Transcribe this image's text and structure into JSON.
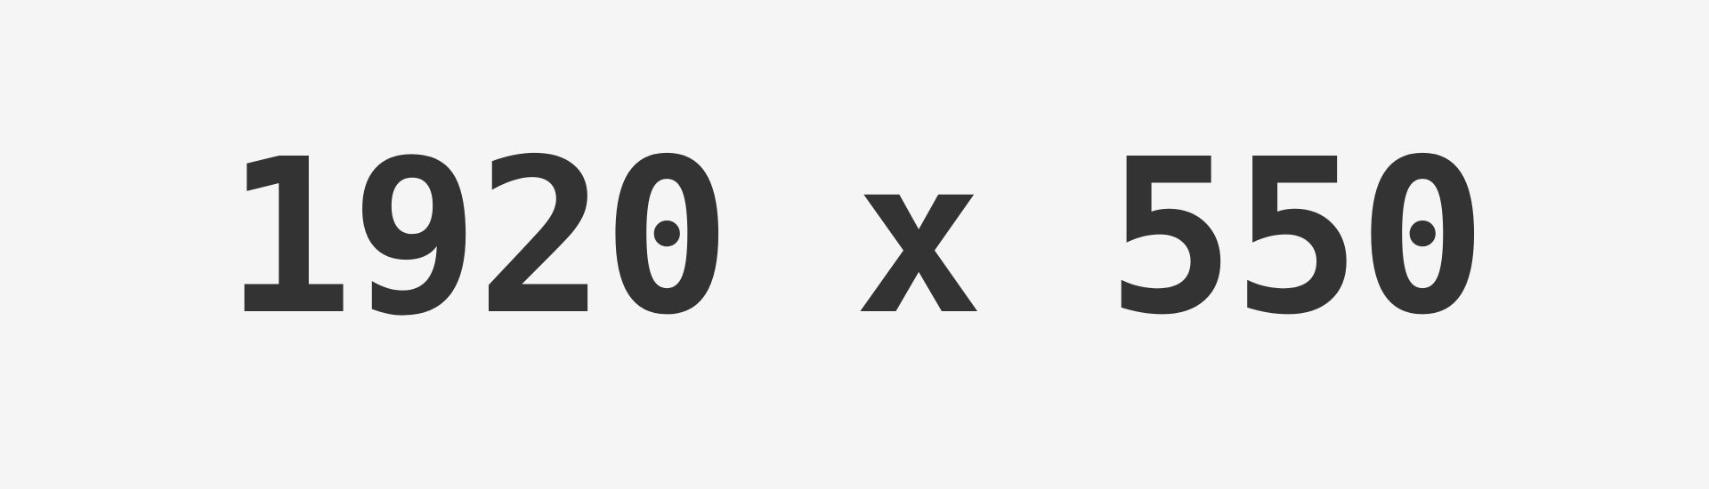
{
  "placeholder": {
    "text": "1920 x 550",
    "background_color": "#f5f5f5",
    "text_color": "#333333"
  }
}
